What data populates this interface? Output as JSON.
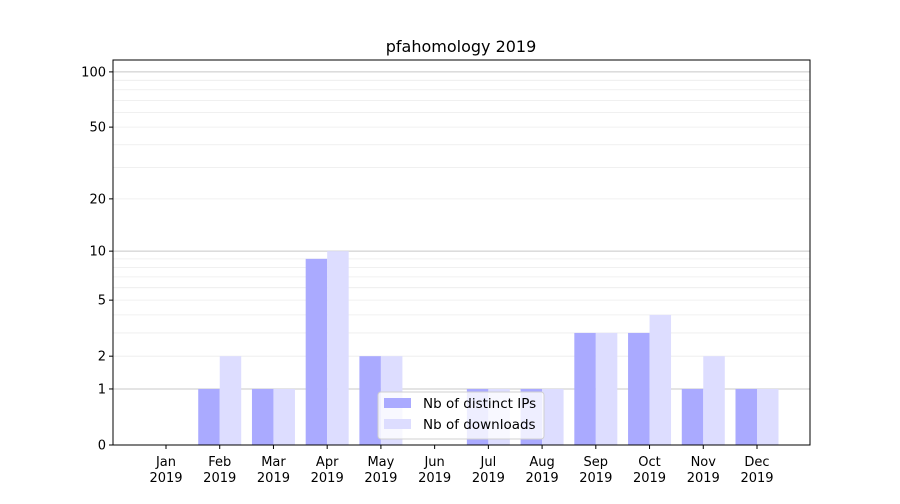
{
  "chart_data": {
    "type": "bar",
    "title": "pfahomology 2019",
    "xlabel": "",
    "ylabel": "",
    "yscale": "symlog (log of 1+y)",
    "ylim": [
      0,
      116
    ],
    "yticks": [
      0,
      1,
      2,
      5,
      10,
      20,
      50,
      100
    ],
    "ytick_labels": [
      "0",
      "1",
      "2",
      "5",
      "10",
      "20",
      "50",
      "100"
    ],
    "grid": true,
    "legend_position": "bottom-center",
    "categories": [
      [
        "Jan",
        "2019"
      ],
      [
        "Feb",
        "2019"
      ],
      [
        "Mar",
        "2019"
      ],
      [
        "Apr",
        "2019"
      ],
      [
        "May",
        "2019"
      ],
      [
        "Jun",
        "2019"
      ],
      [
        "Jul",
        "2019"
      ],
      [
        "Aug",
        "2019"
      ],
      [
        "Sep",
        "2019"
      ],
      [
        "Oct",
        "2019"
      ],
      [
        "Nov",
        "2019"
      ],
      [
        "Dec",
        "2019"
      ]
    ],
    "series": [
      {
        "name": "Nb of distinct IPs",
        "color": "#aaaaff",
        "values": [
          0,
          1,
          1,
          9,
          2,
          0,
          1,
          1,
          3,
          3,
          1,
          1
        ]
      },
      {
        "name": "Nb of downloads",
        "color": "#ddddff",
        "values": [
          0,
          2,
          1,
          10,
          2,
          0,
          1,
          1,
          3,
          4,
          2,
          1
        ]
      }
    ]
  }
}
